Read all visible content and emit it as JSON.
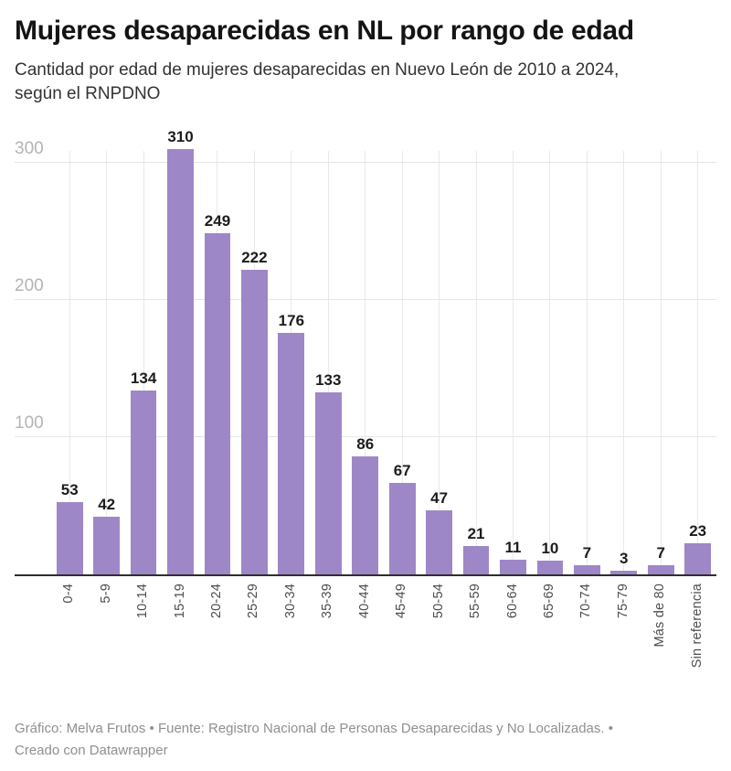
{
  "header": {
    "title": "Mujeres desaparecidas en NL por rango de edad",
    "subtitle_lines": [
      "Cantidad por edad de mujeres desaparecidas en Nuevo León de 2010 a 2024,",
      "según el RNPDNO"
    ]
  },
  "chart_data": {
    "type": "bar",
    "title": "Mujeres desaparecidas en NL por rango de edad",
    "subtitle": "Cantidad por edad de mujeres desaparecidas en Nuevo León de 2010 a 2024, según el RNPDNO",
    "categories": [
      "0-4",
      "5-9",
      "10-14",
      "15-19",
      "20-24",
      "25-29",
      "30-34",
      "35-39",
      "40-44",
      "45-49",
      "50-54",
      "55-59",
      "60-64",
      "65-69",
      "70-74",
      "75-79",
      "Más de 80",
      "Sin referencia"
    ],
    "values": [
      53,
      42,
      134,
      310,
      249,
      222,
      176,
      133,
      86,
      67,
      47,
      21,
      11,
      10,
      7,
      3,
      7,
      23
    ],
    "xlabel": "",
    "ylabel": "",
    "y_ticks": [
      100,
      200,
      300
    ],
    "ylim": [
      0,
      310
    ],
    "grid": "horizontal lines at y ticks plus one vertical gridline per category",
    "legend": "none",
    "value_labels_shown": true,
    "x_tick_rotation_deg": -90,
    "bar_color": "#9e87c7"
  },
  "colors": {
    "bar": "#9e87c7",
    "value_label": "#1c1c1c",
    "y_tick_label": "#b4b4b4",
    "x_tick_label": "#4d4d4d",
    "gridline": "#e6e6e6",
    "axis_line": "#2e2e2e",
    "title": "#141414",
    "subtitle": "#333333",
    "footer": "#8f8f8f"
  },
  "footer": {
    "lines": [
      "Gráfico: Melva Frutos • Fuente: Registro Nacional de Personas Desaparecidas y No Localizadas. •",
      "Creado con Datawrapper"
    ]
  }
}
